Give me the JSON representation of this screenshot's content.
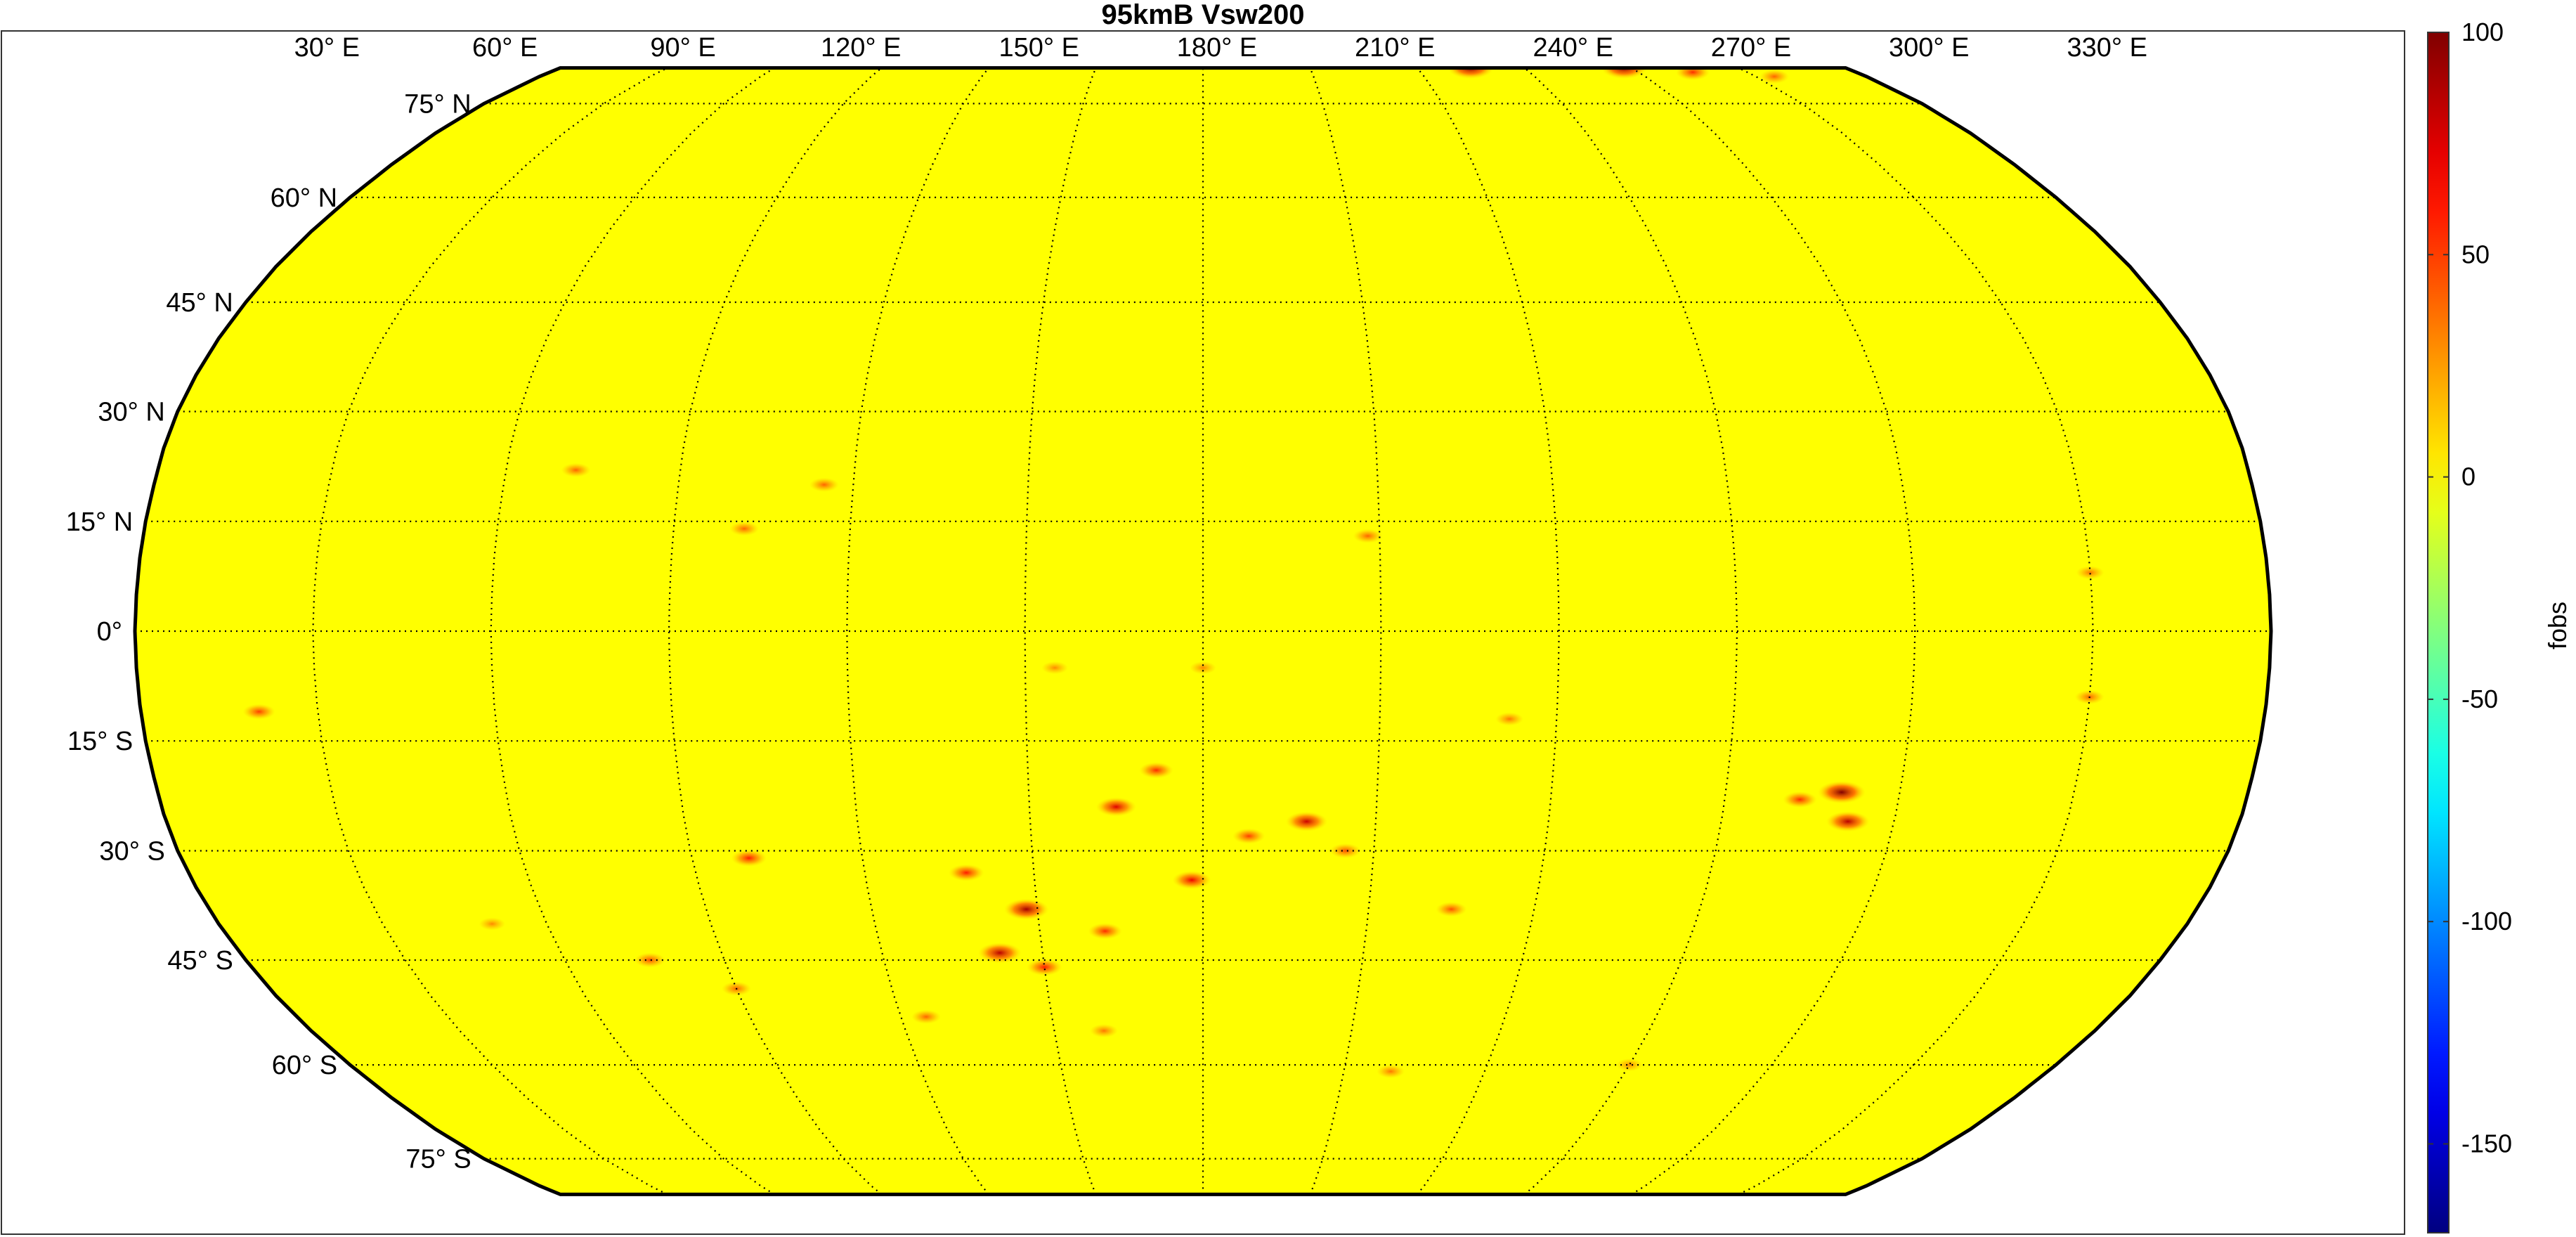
{
  "figure": {
    "title": "95kmB Vsw200",
    "projection": "robinson",
    "background_color": "#ffffff",
    "map_fill_color": "#ffff00",
    "boundary_color": "#000000",
    "grid_style": "dotted"
  },
  "longitude_labels": [
    "30° E",
    "60° E",
    "90° E",
    "120° E",
    "150° E",
    "180° E",
    "210° E",
    "240° E",
    "270° E",
    "300° E",
    "330° E"
  ],
  "latitude_labels": [
    "75° N",
    "60° N",
    "45° N",
    "30° N",
    "15° N",
    "0°",
    "15° S",
    "30° S",
    "45° S",
    "60° S",
    "75° S"
  ],
  "colorbar": {
    "label": "fobs",
    "colormap": "jet",
    "range": [
      -170,
      100
    ],
    "ticks": [
      "100",
      "50",
      "0",
      "-50",
      "-100",
      "-150"
    ]
  },
  "anomaly_hotspots": [
    {
      "lon": 148,
      "lat": -38,
      "value": 90
    },
    {
      "lon": 138,
      "lat": -33,
      "value": 60
    },
    {
      "lon": 142,
      "lat": -44,
      "value": 85
    },
    {
      "lon": 150,
      "lat": -46,
      "value": 60
    },
    {
      "lon": 165,
      "lat": -24,
      "value": 75
    },
    {
      "lon": 172,
      "lat": -19,
      "value": 55
    },
    {
      "lon": 178,
      "lat": -34,
      "value": 70
    },
    {
      "lon": 162,
      "lat": -41,
      "value": 55
    },
    {
      "lon": 198,
      "lat": -26,
      "value": 80
    },
    {
      "lon": 188,
      "lat": -28,
      "value": 50
    },
    {
      "lon": 205,
      "lat": -30,
      "value": 45
    },
    {
      "lon": 290,
      "lat": -22,
      "value": 100
    },
    {
      "lon": 292,
      "lat": -26,
      "value": 85
    },
    {
      "lon": 283,
      "lat": -23,
      "value": 55
    },
    {
      "lon": 255,
      "lat": 82,
      "value": 95
    },
    {
      "lon": 298,
      "lat": 82,
      "value": 95
    },
    {
      "lon": 315,
      "lat": 81,
      "value": 55
    },
    {
      "lon": 335,
      "lat": 80,
      "value": 40
    },
    {
      "lon": 100,
      "lat": -31,
      "value": 60
    },
    {
      "lon": 76,
      "lat": -45,
      "value": 45
    },
    {
      "lon": 90,
      "lat": -49,
      "value": 40
    },
    {
      "lon": 72,
      "lat": 22,
      "value": 40
    },
    {
      "lon": 115,
      "lat": 20,
      "value": 40
    },
    {
      "lon": 102,
      "lat": 14,
      "value": 40
    },
    {
      "lon": 208,
      "lat": 13,
      "value": 40
    },
    {
      "lon": 180,
      "lat": -5,
      "value": 30
    },
    {
      "lon": 155,
      "lat": -5,
      "value": 30
    },
    {
      "lon": 20,
      "lat": -11,
      "value": 50
    },
    {
      "lon": 330,
      "lat": -9,
      "value": 40
    },
    {
      "lon": 330,
      "lat": 8,
      "value": 35
    },
    {
      "lon": 125,
      "lat": -53,
      "value": 40
    },
    {
      "lon": 160,
      "lat": -55,
      "value": 35
    },
    {
      "lon": 220,
      "lat": -61,
      "value": 35
    },
    {
      "lon": 270,
      "lat": -60,
      "value": 30
    },
    {
      "lon": 50,
      "lat": -40,
      "value": 30
    },
    {
      "lon": 225,
      "lat": -38,
      "value": 45
    },
    {
      "lon": 232,
      "lat": -12,
      "value": 35
    }
  ]
}
